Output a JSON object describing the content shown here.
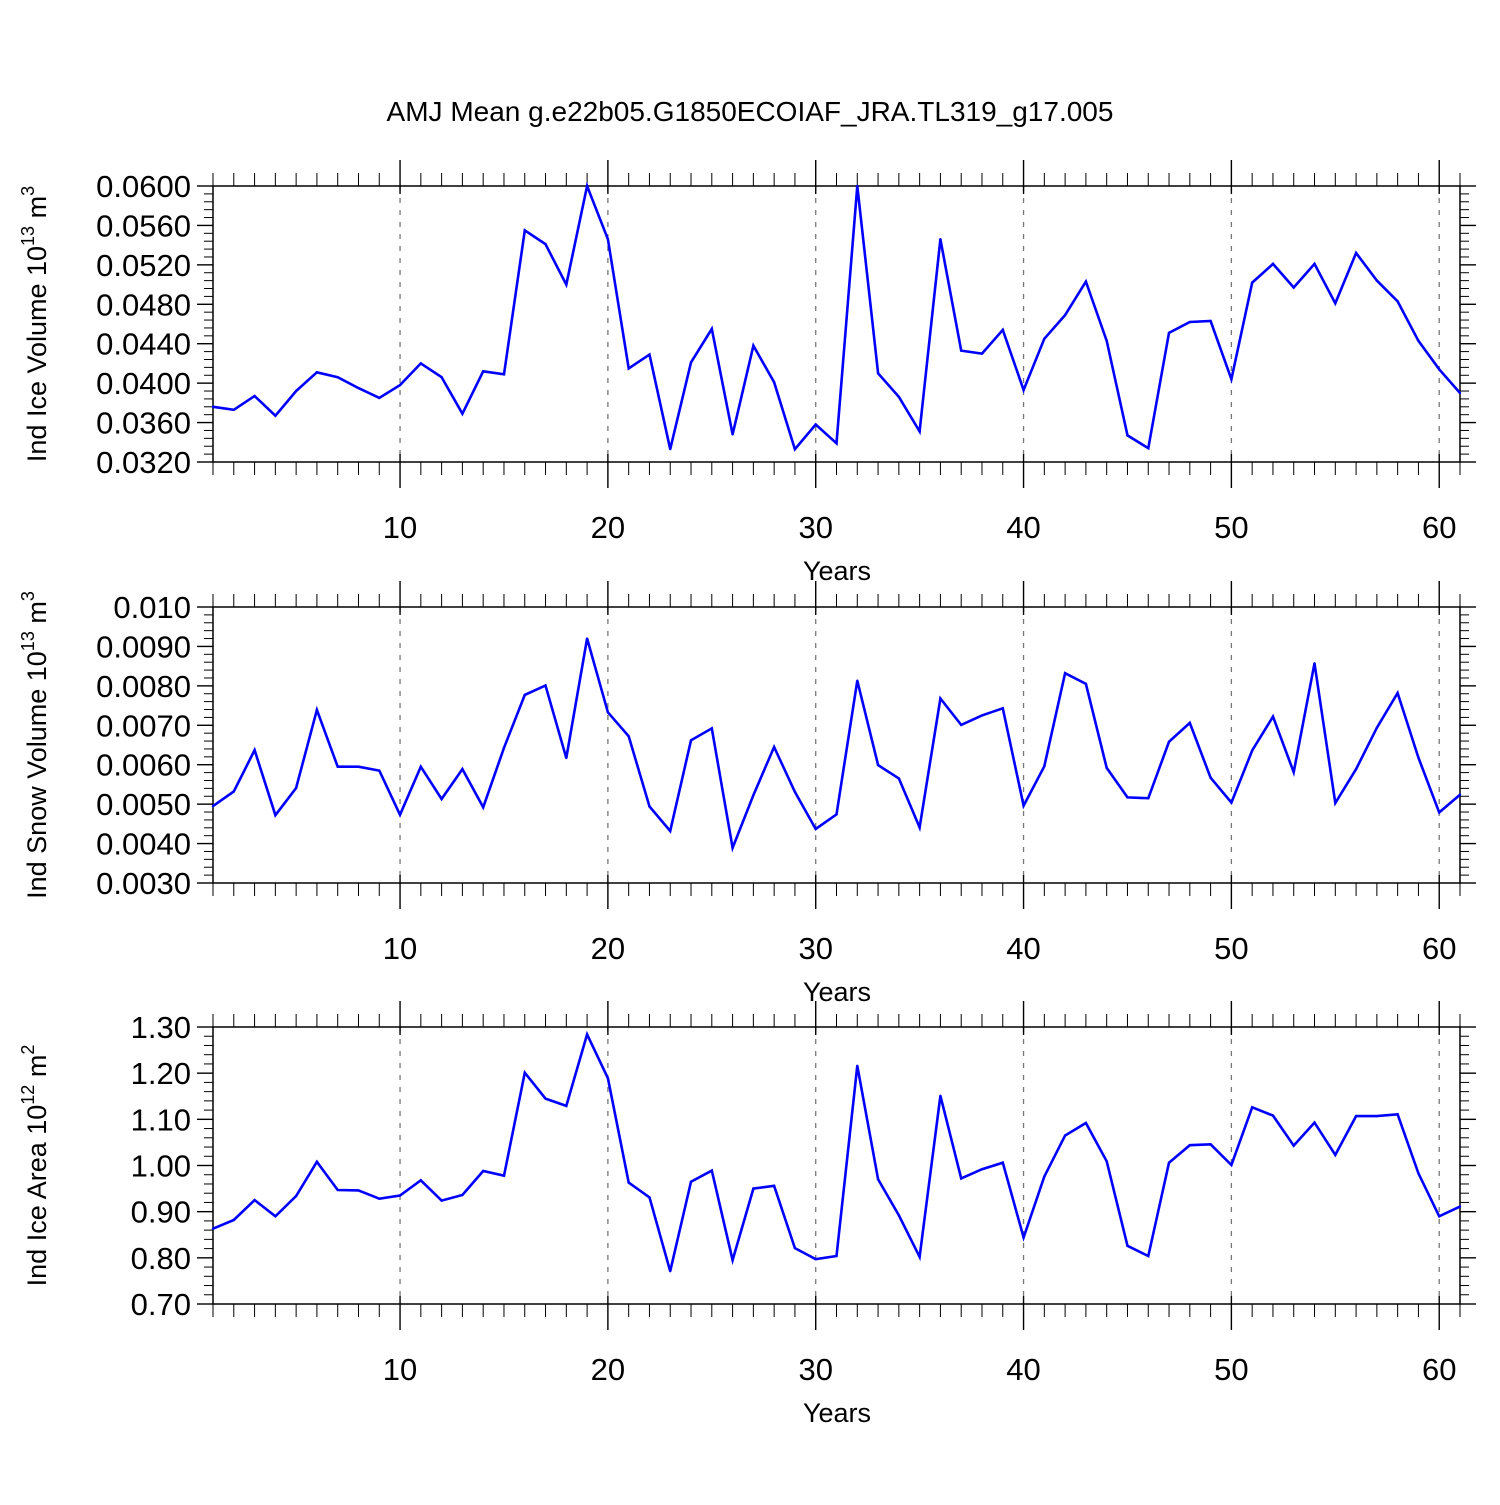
{
  "figure": {
    "title": "AMJ Mean g.e22b05.G1850ECOIAF_JRA.TL319_g17.005"
  },
  "chart_data": [
    {
      "type": "line",
      "title": "AMJ Mean g.e22b05.G1850ECOIAF_JRA.TL319_g17.005",
      "xlabel": "Years",
      "ylabel": "Ind Ice Volume 10^13 m^3",
      "ylabel_parts": {
        "text": "Ind Ice Volume 10",
        "exp1": "13",
        "unit": " m",
        "exp2": "3"
      },
      "xlim": [
        1,
        61
      ],
      "ylim": [
        0.032,
        0.06
      ],
      "xticks": [
        10,
        20,
        30,
        40,
        50,
        60
      ],
      "yticks": [
        0.032,
        0.036,
        0.04,
        0.044,
        0.048,
        0.052,
        0.056,
        0.06
      ],
      "ytick_labels": [
        "0.0320",
        "0.0360",
        "0.0400",
        "0.0440",
        "0.0480",
        "0.0520",
        "0.0560",
        "0.0600"
      ],
      "grid": "vertical dashed at major x ticks",
      "line_color": "#0000ff",
      "x": [
        1,
        2,
        3,
        4,
        5,
        6,
        7,
        8,
        9,
        10,
        11,
        12,
        13,
        14,
        15,
        16,
        17,
        18,
        19,
        20,
        21,
        22,
        23,
        24,
        25,
        26,
        27,
        28,
        29,
        30,
        31,
        32,
        33,
        34,
        35,
        36,
        37,
        38,
        39,
        40,
        41,
        42,
        43,
        44,
        45,
        46,
        47,
        48,
        49,
        50,
        51,
        52,
        53,
        54,
        55,
        56,
        57,
        58,
        59,
        60,
        61
      ],
      "values": [
        0.0376,
        0.0373,
        0.0387,
        0.0367,
        0.0392,
        0.0411,
        0.0406,
        0.0395,
        0.0385,
        0.0398,
        0.042,
        0.0406,
        0.0369,
        0.0412,
        0.0409,
        0.0555,
        0.0541,
        0.05,
        0.06,
        0.0546,
        0.0415,
        0.0429,
        0.0333,
        0.0421,
        0.0455,
        0.0348,
        0.0438,
        0.0401,
        0.0333,
        0.0358,
        0.0339,
        0.06,
        0.041,
        0.0386,
        0.0351,
        0.0546,
        0.0433,
        0.043,
        0.0454,
        0.0393,
        0.0445,
        0.0469,
        0.0503,
        0.0443,
        0.0347,
        0.0334,
        0.0451,
        0.0462,
        0.0463,
        0.0404,
        0.0502,
        0.0521,
        0.0497,
        0.0521,
        0.0481,
        0.0532,
        0.0504,
        0.0483,
        0.0443,
        0.0414,
        0.039
      ]
    },
    {
      "type": "line",
      "xlabel": "Years",
      "ylabel": "Ind Snow Volume 10^13 m^3",
      "ylabel_parts": {
        "text": "Ind Snow Volume 10",
        "exp1": "13",
        "unit": " m",
        "exp2": "3"
      },
      "xlim": [
        1,
        61
      ],
      "ylim": [
        0.003,
        0.01
      ],
      "xticks": [
        10,
        20,
        30,
        40,
        50,
        60
      ],
      "yticks": [
        0.003,
        0.004,
        0.005,
        0.006,
        0.007,
        0.008,
        0.009,
        0.01
      ],
      "ytick_labels": [
        "0.0030",
        "0.0040",
        "0.0050",
        "0.0060",
        "0.0070",
        "0.0080",
        "0.0090",
        "0.010"
      ],
      "grid": "vertical dashed at major x ticks",
      "line_color": "#0000ff",
      "x": [
        1,
        2,
        3,
        4,
        5,
        6,
        7,
        8,
        9,
        10,
        11,
        12,
        13,
        14,
        15,
        16,
        17,
        18,
        19,
        20,
        21,
        22,
        23,
        24,
        25,
        26,
        27,
        28,
        29,
        30,
        31,
        32,
        33,
        34,
        35,
        36,
        37,
        38,
        39,
        40,
        41,
        42,
        43,
        44,
        45,
        46,
        47,
        48,
        49,
        50,
        51,
        52,
        53,
        54,
        55,
        56,
        57,
        58,
        59,
        60,
        61
      ],
      "values": [
        0.00495,
        0.00532,
        0.00637,
        0.00472,
        0.00541,
        0.00739,
        0.00595,
        0.00595,
        0.00585,
        0.00473,
        0.00595,
        0.00513,
        0.00589,
        0.00492,
        0.00643,
        0.00777,
        0.00801,
        0.00617,
        0.0092,
        0.00733,
        0.00672,
        0.00494,
        0.00432,
        0.00662,
        0.00692,
        0.00389,
        0.00523,
        0.00645,
        0.00531,
        0.00437,
        0.00474,
        0.00813,
        0.00599,
        0.00565,
        0.00441,
        0.00768,
        0.00701,
        0.00725,
        0.00743,
        0.00496,
        0.00596,
        0.00832,
        0.00805,
        0.00592,
        0.00517,
        0.00515,
        0.00658,
        0.00706,
        0.00567,
        0.00504,
        0.00636,
        0.00722,
        0.00581,
        0.00857,
        0.00503,
        0.00589,
        0.00694,
        0.00782,
        0.00618,
        0.00479,
        0.00524
      ]
    },
    {
      "type": "line",
      "xlabel": "Years",
      "ylabel": "Ind Ice Area 10^12 m^2",
      "ylabel_parts": {
        "text": "Ind Ice Area 10",
        "exp1": "12",
        "unit": " m",
        "exp2": "2"
      },
      "xlim": [
        1,
        61
      ],
      "ylim": [
        0.7,
        1.3
      ],
      "xticks": [
        10,
        20,
        30,
        40,
        50,
        60
      ],
      "yticks": [
        0.7,
        0.8,
        0.9,
        1.0,
        1.1,
        1.2,
        1.3
      ],
      "ytick_labels": [
        "0.70",
        "0.80",
        "0.90",
        "1.00",
        "1.10",
        "1.20",
        "1.30"
      ],
      "grid": "vertical dashed at major x ticks",
      "line_color": "#0000ff",
      "x": [
        1,
        2,
        3,
        4,
        5,
        6,
        7,
        8,
        9,
        10,
        11,
        12,
        13,
        14,
        15,
        16,
        17,
        18,
        19,
        20,
        21,
        22,
        23,
        24,
        25,
        26,
        27,
        28,
        29,
        30,
        31,
        32,
        33,
        34,
        35,
        36,
        37,
        38,
        39,
        40,
        41,
        42,
        43,
        44,
        45,
        46,
        47,
        48,
        49,
        50,
        51,
        52,
        53,
        54,
        55,
        56,
        57,
        58,
        59,
        60,
        61
      ],
      "values": [
        0.863,
        0.882,
        0.925,
        0.89,
        0.934,
        1.008,
        0.947,
        0.946,
        0.928,
        0.935,
        0.968,
        0.924,
        0.936,
        0.988,
        0.978,
        1.201,
        1.145,
        1.129,
        1.284,
        1.189,
        0.963,
        0.931,
        0.771,
        0.965,
        0.989,
        0.795,
        0.95,
        0.956,
        0.821,
        0.797,
        0.804,
        1.216,
        0.97,
        0.892,
        0.802,
        1.151,
        0.972,
        0.992,
        1.006,
        0.844,
        0.976,
        1.065,
        1.092,
        1.009,
        0.826,
        0.804,
        1.006,
        1.044,
        1.046,
        1.001,
        1.126,
        1.108,
        1.043,
        1.093,
        1.023,
        1.107,
        1.107,
        1.111,
        0.983,
        0.89,
        0.911
      ]
    }
  ]
}
